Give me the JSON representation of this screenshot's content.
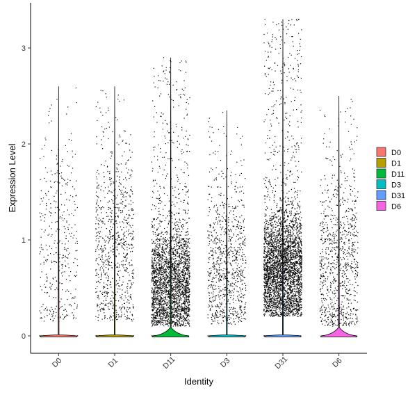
{
  "chart_data": {
    "type": "violin",
    "xlabel": "Identity",
    "ylabel": "Expression Level",
    "categories": [
      "D0",
      "D1",
      "D11",
      "D3",
      "D31",
      "D6"
    ],
    "ylim": [
      -0.17,
      3.45
    ],
    "yticks": [
      0,
      1,
      2,
      3
    ],
    "ytick_labels": [
      "0",
      "1",
      "2",
      "3"
    ],
    "grid": false,
    "legend_position": "right",
    "series": [
      {
        "name": "D0",
        "color": "#F8766D",
        "max": 2.6,
        "density_at_zero": "high",
        "nonzero_points_approx": 380
      },
      {
        "name": "D1",
        "color": "#B79F00",
        "max": 2.6,
        "density_at_zero": "high",
        "nonzero_points_approx": 850
      },
      {
        "name": "D11",
        "color": "#00BA38",
        "max": 2.9,
        "density_at_zero": "medium",
        "nonzero_points_approx": 2800
      },
      {
        "name": "D3",
        "color": "#00BFC4",
        "max": 2.35,
        "density_at_zero": "high",
        "nonzero_points_approx": 900
      },
      {
        "name": "D31",
        "color": "#619CFF",
        "max": 3.3,
        "density_at_zero": "high",
        "nonzero_points_approx": 3600
      },
      {
        "name": "D6",
        "color": "#F564E3",
        "max": 2.5,
        "density_at_zero": "medium",
        "nonzero_points_approx": 900
      }
    ]
  }
}
